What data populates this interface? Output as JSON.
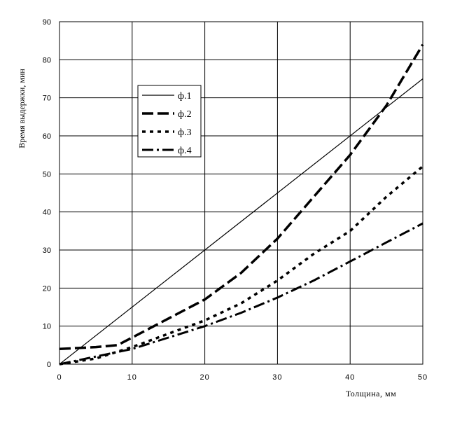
{
  "chart_data": {
    "type": "line",
    "xlabel": "Толщина, мм",
    "ylabel": "Время выдержки, мин",
    "xlim": [
      0,
      50
    ],
    "ylim": [
      0,
      90
    ],
    "xticks": [
      0,
      10,
      20,
      30,
      40,
      50
    ],
    "yticks": [
      0,
      10,
      20,
      30,
      40,
      50,
      60,
      70,
      80,
      90
    ],
    "grid": true,
    "legend_position": "upper-left inside plot",
    "series": [
      {
        "name": "ф.1",
        "style": "solid-thin",
        "x": [
          0,
          50
        ],
        "y": [
          0,
          75
        ]
      },
      {
        "name": "ф.2",
        "style": "long-dash-thick",
        "x": [
          0,
          5,
          8,
          10,
          15,
          20,
          25,
          30,
          35,
          40,
          45,
          50
        ],
        "y": [
          4,
          4.5,
          5,
          7,
          12,
          17,
          24,
          33,
          44,
          55,
          68,
          84
        ]
      },
      {
        "name": "ф.3",
        "style": "short-dash-thick",
        "x": [
          0,
          5,
          10,
          15,
          20,
          25,
          30,
          35,
          40,
          45,
          50
        ],
        "y": [
          0,
          1.5,
          4.5,
          8,
          11.5,
          16,
          22,
          29,
          35,
          44,
          52
        ]
      },
      {
        "name": "ф.4",
        "style": "dash-dot-thick",
        "x": [
          0,
          5,
          10,
          15,
          20,
          25,
          30,
          35,
          40,
          45,
          50
        ],
        "y": [
          0,
          2,
          4,
          7,
          10,
          13.5,
          17.5,
          22,
          27,
          32,
          37
        ]
      }
    ]
  }
}
